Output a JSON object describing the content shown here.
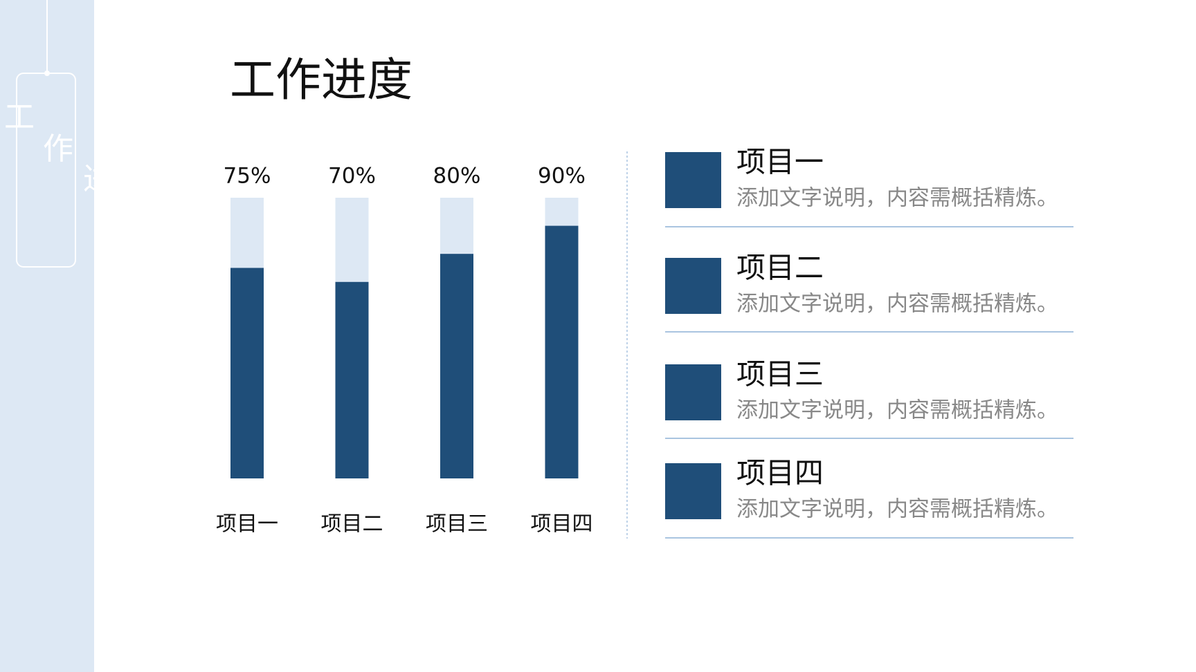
{
  "title": "工作进度",
  "side_tag": [
    "工",
    "作",
    "进"
  ],
  "chart_data": {
    "type": "bar",
    "categories": [
      "项目一",
      "项目二",
      "项目三",
      "项目四"
    ],
    "values": [
      75,
      70,
      80,
      90
    ],
    "value_labels": [
      "75%",
      "70%",
      "80%",
      "90%"
    ],
    "ylim": [
      0,
      100
    ],
    "color": "#1f4e79",
    "track_color": "#dde8f4"
  },
  "items": [
    {
      "label": "项目一",
      "text": "添加文字说明，内容需概括精炼。"
    },
    {
      "label": "项目二",
      "text": "添加文字说明，内容需概括精炼。"
    },
    {
      "label": "项目三",
      "text": "添加文字说明，内容需概括精炼。"
    },
    {
      "label": "项目四",
      "text": "添加文字说明，内容需概括精炼。"
    }
  ]
}
